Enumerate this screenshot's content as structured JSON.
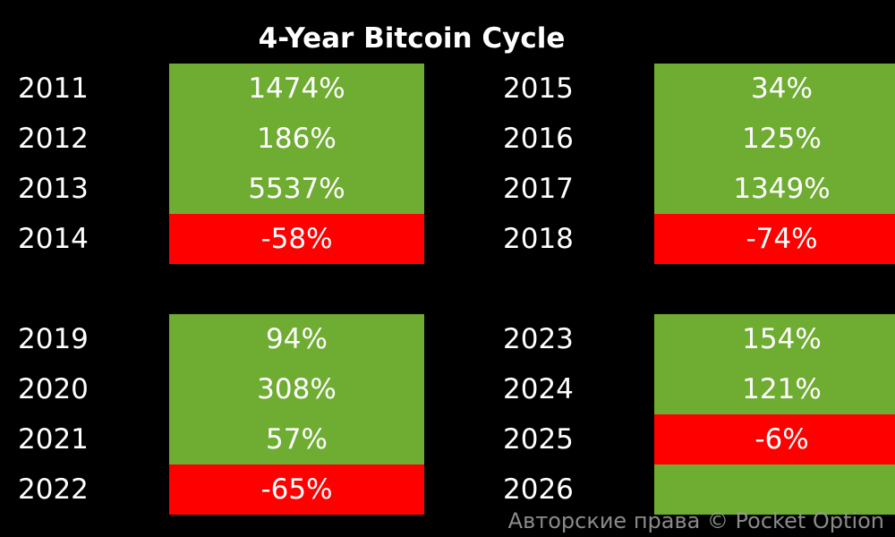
{
  "title": "4-Year Bitcoin Cycle",
  "colors": {
    "background": "#000000",
    "positive": "#6fac32",
    "negative": "#ff0000",
    "text": "#ffffff"
  },
  "blocks": [
    {
      "rows": [
        {
          "year": "2011",
          "value": "1474%",
          "sign": "pos"
        },
        {
          "year": "2012",
          "value": "186%",
          "sign": "pos"
        },
        {
          "year": "2013",
          "value": "5537%",
          "sign": "pos"
        },
        {
          "year": "2014",
          "value": "-58%",
          "sign": "neg"
        }
      ]
    },
    {
      "rows": [
        {
          "year": "2015",
          "value": "34%",
          "sign": "pos"
        },
        {
          "year": "2016",
          "value": "125%",
          "sign": "pos"
        },
        {
          "year": "2017",
          "value": "1349%",
          "sign": "pos"
        },
        {
          "year": "2018",
          "value": "-74%",
          "sign": "neg"
        }
      ]
    },
    {
      "rows": [
        {
          "year": "2019",
          "value": "94%",
          "sign": "pos"
        },
        {
          "year": "2020",
          "value": "308%",
          "sign": "pos"
        },
        {
          "year": "2021",
          "value": "57%",
          "sign": "pos"
        },
        {
          "year": "2022",
          "value": "-65%",
          "sign": "neg"
        }
      ]
    },
    {
      "rows": [
        {
          "year": "2023",
          "value": "154%",
          "sign": "pos"
        },
        {
          "year": "2024",
          "value": "121%",
          "sign": "pos"
        },
        {
          "year": "2025",
          "value": "-6%",
          "sign": "neg"
        },
        {
          "year": "2026",
          "value": "",
          "sign": "pos"
        }
      ]
    }
  ],
  "watermark": "Авторские права © Pocket Option"
}
